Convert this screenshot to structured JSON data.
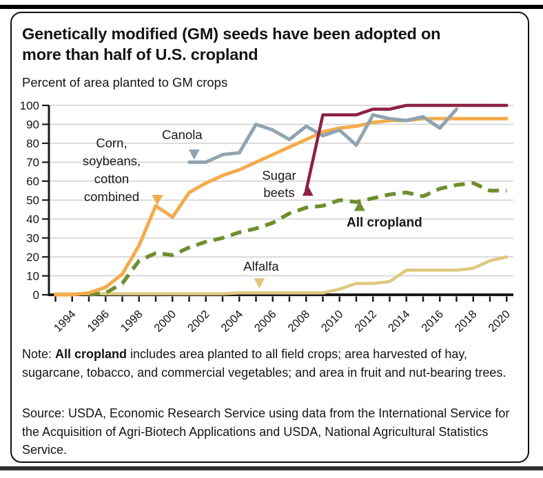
{
  "figure": {
    "title": "Genetically modified (GM) seeds have been adopted on\nmore than half of U.S. cropland",
    "subtitle": "Percent of area planted to GM crops",
    "note": {
      "prefix": "Note: ",
      "bold": "All cropland",
      "rest": " includes area planted to all field crops; area harvested of hay, sugarcane, tobacco, and commercial vegetables; and area in fruit and nut-bearing trees."
    },
    "source": "Source: USDA, Economic Research Service using data from the International Service for the Acquisition of Agri-Biotech Applications and USDA, National Agricultural Statistics Service."
  },
  "chart_data": {
    "type": "line",
    "title": "Genetically modified (GM) seeds have been adopted on more than half of U.S. cropland",
    "ylabel": "Percent of area planted to GM crops",
    "xlabel": "",
    "x_range": [
      1993,
      2020
    ],
    "y_range": [
      0,
      100
    ],
    "y_ticks": [
      0,
      10,
      20,
      30,
      40,
      50,
      60,
      70,
      80,
      90,
      100
    ],
    "x_tick_labels": [
      "1994",
      "1996",
      "1998",
      "2000",
      "2002",
      "2004",
      "2006",
      "2008",
      "2010",
      "2012",
      "2014",
      "2016",
      "2018",
      "2020"
    ],
    "grid": "horizontal-light",
    "legend_position": "inline-annotations",
    "colors": {
      "axis": "#1a1a1a",
      "grid": "#cfcfcf"
    },
    "series": [
      {
        "name": "Alfalfa",
        "color": "#DEC87E",
        "style": "solid",
        "width": 4.5,
        "points": [
          [
            1993,
            0.5
          ],
          [
            1994,
            0.5
          ],
          [
            1995,
            0.5
          ],
          [
            1996,
            0.5
          ],
          [
            1997,
            0.5
          ],
          [
            1998,
            0.5
          ],
          [
            1999,
            0.5
          ],
          [
            2000,
            0.5
          ],
          [
            2001,
            0.5
          ],
          [
            2002,
            0.5
          ],
          [
            2003,
            0.5
          ],
          [
            2004,
            1
          ],
          [
            2005,
            1
          ],
          [
            2006,
            1
          ],
          [
            2007,
            1
          ],
          [
            2008,
            1
          ],
          [
            2009,
            1
          ],
          [
            2010,
            3
          ],
          [
            2011,
            6
          ],
          [
            2012,
            6
          ],
          [
            2013,
            7
          ],
          [
            2014,
            13
          ],
          [
            2015,
            13
          ],
          [
            2016,
            13
          ],
          [
            2017,
            13
          ],
          [
            2018,
            14
          ],
          [
            2019,
            18
          ],
          [
            2020,
            20
          ]
        ]
      },
      {
        "name": "All cropland",
        "color": "#6E8F2D",
        "style": "dashed",
        "dash": "16 10",
        "width": 5.5,
        "points": [
          [
            1995,
            0
          ],
          [
            1996,
            1
          ],
          [
            1997,
            6
          ],
          [
            1998,
            18
          ],
          [
            1999,
            22
          ],
          [
            2000,
            21
          ],
          [
            2001,
            25
          ],
          [
            2002,
            28
          ],
          [
            2003,
            30
          ],
          [
            2004,
            33
          ],
          [
            2005,
            35
          ],
          [
            2006,
            38
          ],
          [
            2007,
            43
          ],
          [
            2008,
            46
          ],
          [
            2009,
            47
          ],
          [
            2010,
            50
          ],
          [
            2011,
            49
          ],
          [
            2012,
            51
          ],
          [
            2013,
            53
          ],
          [
            2014,
            54
          ],
          [
            2015,
            52
          ],
          [
            2016,
            56
          ],
          [
            2017,
            58
          ],
          [
            2018,
            59
          ],
          [
            2019,
            55
          ],
          [
            2020,
            55
          ]
        ]
      },
      {
        "name": "Corn, soybeans, cotton combined",
        "color": "#F5AB4B",
        "style": "solid",
        "width": 5,
        "points": [
          [
            1993,
            0
          ],
          [
            1994,
            0
          ],
          [
            1995,
            1
          ],
          [
            1996,
            4
          ],
          [
            1997,
            11
          ],
          [
            1998,
            26
          ],
          [
            1999,
            47
          ],
          [
            2000,
            41
          ],
          [
            2001,
            54
          ],
          [
            2002,
            59
          ],
          [
            2003,
            63
          ],
          [
            2004,
            66
          ],
          [
            2005,
            70
          ],
          [
            2006,
            74
          ],
          [
            2007,
            78
          ],
          [
            2008,
            82
          ],
          [
            2009,
            86
          ],
          [
            2010,
            88
          ],
          [
            2011,
            89
          ],
          [
            2012,
            91
          ],
          [
            2013,
            92
          ],
          [
            2014,
            92
          ],
          [
            2015,
            93
          ],
          [
            2016,
            93
          ],
          [
            2017,
            93
          ],
          [
            2018,
            93
          ],
          [
            2019,
            93
          ],
          [
            2020,
            93
          ]
        ]
      },
      {
        "name": "Canola",
        "color": "#90A4B0",
        "style": "solid",
        "width": 5,
        "points": [
          [
            2001,
            70
          ],
          [
            2002,
            70
          ],
          [
            2003,
            74
          ],
          [
            2004,
            75
          ],
          [
            2005,
            90
          ],
          [
            2006,
            87
          ],
          [
            2007,
            82
          ],
          [
            2008,
            89
          ],
          [
            2009,
            84
          ],
          [
            2010,
            87
          ],
          [
            2011,
            79
          ],
          [
            2012,
            95
          ],
          [
            2013,
            93
          ],
          [
            2014,
            92
          ],
          [
            2015,
            94
          ],
          [
            2016,
            88
          ],
          [
            2017,
            98
          ]
        ]
      },
      {
        "name": "Sugar beets",
        "color": "#8C2143",
        "style": "solid",
        "width": 4.5,
        "points": [
          [
            2008,
            55
          ],
          [
            2009,
            95
          ],
          [
            2010,
            95
          ],
          [
            2011,
            95
          ],
          [
            2012,
            98
          ],
          [
            2013,
            98
          ],
          [
            2014,
            100
          ],
          [
            2015,
            100
          ],
          [
            2016,
            100
          ],
          [
            2017,
            100
          ],
          [
            2018,
            100
          ],
          [
            2019,
            100
          ],
          [
            2020,
            100
          ]
        ]
      }
    ],
    "annotations": [
      {
        "id": "corn",
        "label": "Corn,\nsoybeans,\ncotton\ncombined",
        "marker_year": 1999.1,
        "marker_value": 50,
        "dir": "down",
        "color": "#F5AB4B"
      },
      {
        "id": "canola",
        "label": "Canola",
        "marker_year": 2001.3,
        "marker_value": 74,
        "dir": "down",
        "color": "#90A4B0"
      },
      {
        "id": "sugar-beets",
        "label": "Sugar\nbeets",
        "marker_year": 2008.1,
        "marker_value": 55,
        "dir": "up",
        "color": "#8C2143"
      },
      {
        "id": "all-cropland",
        "label": "All cropland",
        "marker_year": 2011.2,
        "marker_value": 47,
        "dir": "up",
        "color": "#6E8F2D"
      },
      {
        "id": "alfalfa",
        "label": "Alfalfa",
        "marker_year": 2005.2,
        "marker_value": 6,
        "dir": "down",
        "color": "#DEC87E"
      }
    ]
  }
}
